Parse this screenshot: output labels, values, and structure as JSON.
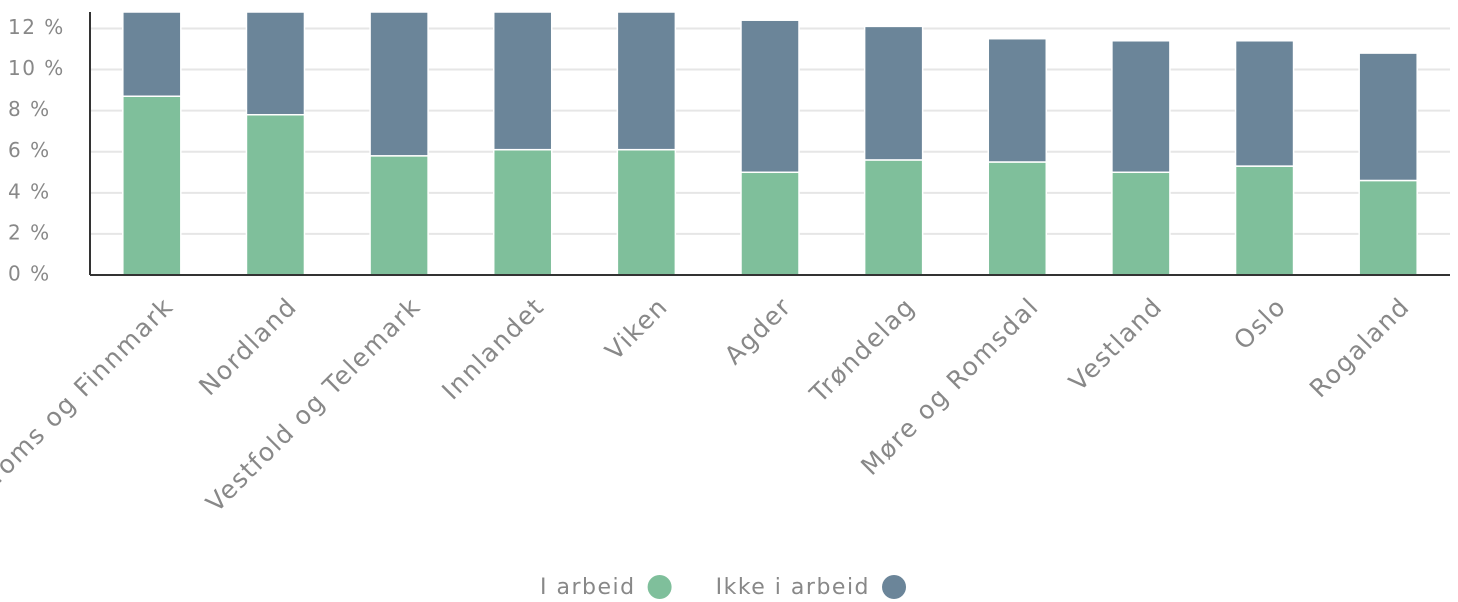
{
  "chart_data": {
    "type": "stacked_bar",
    "categories": [
      "Troms og Finnmark",
      "Nordland",
      "Vestfold og Telemark",
      "Innlandet",
      "Viken",
      "Agder",
      "Trøndelag",
      "Møre og Romsdal",
      "Vestland",
      "Oslo",
      "Rogaland"
    ],
    "series": [
      {
        "name": "I arbeid",
        "color": "#7fbf9b",
        "values": [
          8.7,
          7.8,
          5.8,
          6.1,
          6.1,
          5.0,
          5.6,
          5.5,
          5.0,
          5.3,
          4.6
        ]
      },
      {
        "name": "Ikke i arbeid",
        "color": "#6b8599",
        "values": [
          4.1,
          5.0,
          7.0,
          6.7,
          6.7,
          7.4,
          6.5,
          6.0,
          6.4,
          6.1,
          6.2
        ]
      }
    ],
    "ylim": [
      0,
      12.8
    ],
    "yticks": [
      {
        "value": 0,
        "label": "0 %"
      },
      {
        "value": 2,
        "label": "2 %"
      },
      {
        "value": 4,
        "label": "4 %"
      },
      {
        "value": 6,
        "label": "6 %"
      },
      {
        "value": 8,
        "label": "8 %"
      },
      {
        "value": 10,
        "label": "10 %"
      },
      {
        "value": 12,
        "label": "12 %"
      }
    ],
    "grid": true,
    "legend": "bottom"
  }
}
